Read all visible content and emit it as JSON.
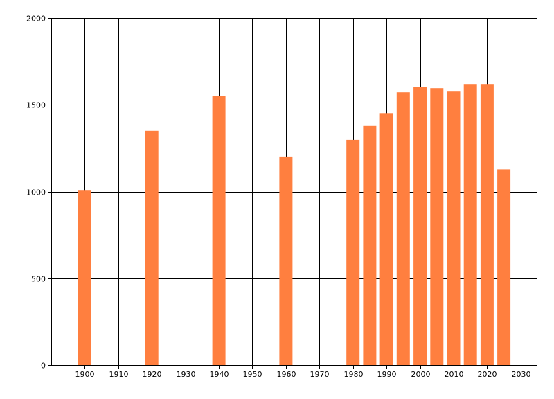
{
  "chart_data": {
    "type": "bar",
    "title": "",
    "xlabel": "",
    "ylabel": "",
    "x": [
      1900,
      1920,
      1940,
      1960,
      1980,
      1985,
      1990,
      1995,
      2000,
      2005,
      2010,
      2015,
      2020,
      2025
    ],
    "values": [
      1005,
      1350,
      1552,
      1202,
      1298,
      1378,
      1452,
      1572,
      1603,
      1596,
      1576,
      1620,
      1620,
      1128
    ],
    "xlim": [
      1890,
      2035
    ],
    "ylim": [
      0,
      2000
    ],
    "x_ticks": [
      1900,
      1910,
      1920,
      1930,
      1940,
      1950,
      1960,
      1970,
      1980,
      1990,
      2000,
      2010,
      2020,
      2030
    ],
    "y_ticks": [
      0,
      500,
      1000,
      1500,
      2000
    ],
    "x_tick_labels": [
      "1900",
      "1910",
      "1920",
      "1930",
      "1940",
      "1950",
      "1960",
      "1970",
      "1980",
      "1990",
      "2000",
      "2010",
      "2020",
      "2030"
    ],
    "y_tick_labels": [
      "0",
      "500",
      "1000",
      "1500",
      "2000"
    ],
    "grid": true,
    "legend": "none",
    "bar_color": "#ff7f3f",
    "grid_color": "#000000",
    "axis_color": "#000000"
  }
}
